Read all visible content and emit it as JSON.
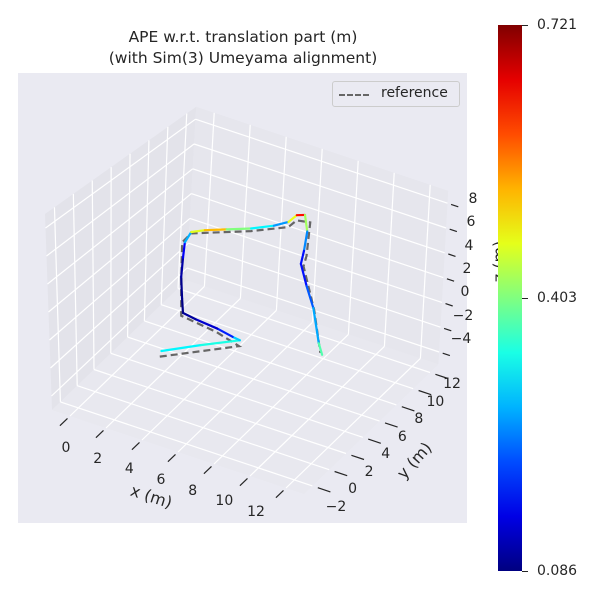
{
  "title_line1": "APE w.r.t. translation part (m)",
  "title_line2": "(with Sim(3) Umeyama alignment)",
  "legend": {
    "label": "reference",
    "line_color": "#666666"
  },
  "colorbar": {
    "colormap": "jet",
    "min": 0.086,
    "max": 0.721,
    "ticks": [
      "0.721",
      "0.403",
      "0.086"
    ],
    "tick_values": [
      0.721,
      0.403,
      0.086
    ]
  },
  "chart_data": {
    "type": "line3d",
    "title": "APE w.r.t. translation part (m) (with Sim(3) Umeyama alignment)",
    "xlabel": "x (m)",
    "ylabel": "y (m)",
    "zlabel": "z (m)",
    "xlim": [
      -1,
      13
    ],
    "ylim": [
      -3,
      13
    ],
    "zlim": [
      -5,
      9
    ],
    "x_ticks": [
      "0",
      "2",
      "4",
      "6",
      "8",
      "10",
      "12"
    ],
    "y_ticks": [
      "−2",
      "0",
      "2",
      "4",
      "6",
      "8",
      "10",
      "12"
    ],
    "z_ticks": [
      "−4",
      "−2",
      "0",
      "2",
      "4",
      "6",
      "8"
    ],
    "grid": true,
    "legend_position": "top-right",
    "background": "#eaeaf2",
    "series": [
      {
        "name": "reference",
        "style": "dashed",
        "color": "#666666",
        "points": [
          [
            4,
            -0.7,
            -0.3
          ],
          [
            6.7,
            2.8,
            -0.3
          ],
          [
            5.2,
            3.3,
            -0.2
          ],
          [
            3.1,
            3.6,
            -0.1
          ],
          [
            3.0,
            3.8,
            2
          ],
          [
            3.0,
            3.9,
            5.2
          ],
          [
            3.3,
            4.3,
            5.8
          ],
          [
            5.5,
            6.5,
            5.8
          ],
          [
            6.8,
            8,
            5.9
          ],
          [
            7.1,
            8.3,
            6.4
          ],
          [
            7.6,
            8.8,
            6.2
          ],
          [
            7.5,
            8.7,
            3.6
          ],
          [
            7.4,
            8.6,
            2.8
          ],
          [
            8.1,
            8.5,
            -0.2
          ],
          [
            8.6,
            8.3,
            -3.2
          ]
        ]
      },
      {
        "name": "",
        "style": "colored-by-ape",
        "points": [
          [
            4,
            -0.5,
            0
          ],
          [
            5.3,
            1.3,
            0
          ],
          [
            6.65,
            3.0,
            0
          ],
          [
            6.2,
            3.1,
            0
          ],
          [
            5.2,
            3.4,
            0
          ],
          [
            3.9,
            3.6,
            0
          ],
          [
            3.1,
            3.8,
            0
          ],
          [
            3.0,
            3.9,
            1
          ],
          [
            2.9,
            4.0,
            2.5
          ],
          [
            3.0,
            4.0,
            4
          ],
          [
            3.1,
            4.0,
            5.2
          ],
          [
            3.3,
            4.3,
            5.9
          ],
          [
            3.8,
            4.8,
            6
          ],
          [
            4.6,
            5.6,
            6
          ],
          [
            5.5,
            6.5,
            6
          ],
          [
            6.3,
            7.4,
            6.1
          ],
          [
            6.8,
            8,
            6.3
          ],
          [
            7.1,
            8.3,
            6.8
          ],
          [
            7.4,
            8.6,
            6.8
          ],
          [
            7.5,
            8.7,
            5.5
          ],
          [
            7.4,
            8.6,
            4
          ],
          [
            7.3,
            8.5,
            3
          ],
          [
            7.7,
            8.4,
            1.5
          ],
          [
            8.1,
            8.4,
            0
          ],
          [
            8.5,
            8.3,
            -2.5
          ],
          [
            8.7,
            8.3,
            -3.3
          ]
        ],
        "ape": [
          0.33,
          0.31,
          0.37,
          0.22,
          0.15,
          0.12,
          0.09,
          0.09,
          0.1,
          0.12,
          0.2,
          0.35,
          0.58,
          0.47,
          0.34,
          0.3,
          0.22,
          0.72,
          0.55,
          0.3,
          0.2,
          0.15,
          0.2,
          0.24,
          0.3,
          0.45
        ]
      }
    ]
  }
}
